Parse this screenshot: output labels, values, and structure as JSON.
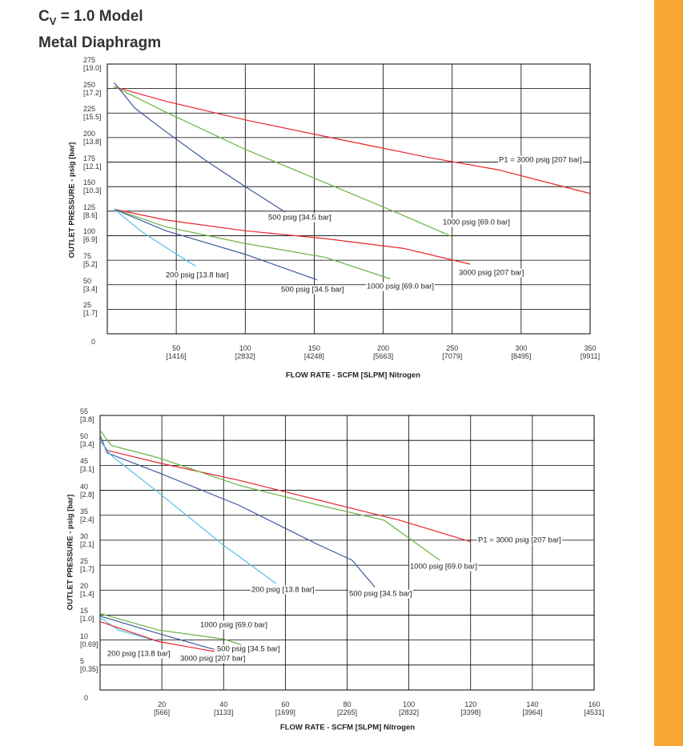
{
  "header": {
    "title": [
      "C",
      "V",
      "= 1.0 Model"
    ],
    "subtitle": "Metal Diaphragm"
  },
  "chart_data": [
    {
      "type": "line",
      "ylabel": "OUTLET PRESSURE - psig [bar]",
      "xlabel": "FLOW RATE - SCFM [SLPM] Nitrogen",
      "grid": true,
      "xlim": [
        0,
        350
      ],
      "ylim": [
        0,
        275
      ],
      "xticks": [
        {
          "value": 50,
          "label": "50\n[1416]"
        },
        {
          "value": 100,
          "label": "100\n[2832]"
        },
        {
          "value": 150,
          "label": "150\n[4248]"
        },
        {
          "value": 200,
          "label": "200\n[5663]"
        },
        {
          "value": 250,
          "label": "250\n[7079]"
        },
        {
          "value": 300,
          "label": "300\n[8495]"
        },
        {
          "value": 350,
          "label": "350\n[9911]"
        }
      ],
      "yticks": [
        0,
        {
          "value": 25,
          "label": "25\n[1.7]"
        },
        {
          "value": 50,
          "label": "50\n[3.4]"
        },
        {
          "value": 75,
          "label": "75\n[5.2]"
        },
        {
          "value": 100,
          "label": "100\n[6.9]"
        },
        {
          "value": 125,
          "label": "125\n[8.6]"
        },
        {
          "value": 150,
          "label": "150\n[10.3]"
        },
        {
          "value": 175,
          "label": "175\n[12.1]"
        },
        {
          "value": 200,
          "label": "200\n[13.8]"
        },
        {
          "value": 225,
          "label": "225\n[15.5]"
        },
        {
          "value": 250,
          "label": "250\n[17.2]"
        },
        {
          "value": 275,
          "label": "275\n[19.0]"
        }
      ],
      "series": [
        {
          "name": "P1 = 3000 psig [207 bar]",
          "color": "#e8262a",
          "x": [
            4.6,
            42.5,
            100,
            169,
            232,
            284,
            350
          ],
          "values": [
            252,
            237,
            218,
            198,
            180,
            167,
            143
          ]
        },
        {
          "name": "1000 psig [69.0 bar]",
          "color": "#6ab344",
          "x": [
            5,
            42.5,
            100,
            158,
            209,
            250
          ],
          "values": [
            252,
            226,
            188,
            154,
            124,
            99
          ]
        },
        {
          "name": "500 psig [34.5 bar]",
          "color": "#3c5a9a",
          "x": [
            5,
            20,
            42.5,
            71,
            100,
            129
          ],
          "values": [
            256,
            230,
            206,
            177,
            150,
            124
          ]
        },
        {
          "name": "3000 psig [207 bar]",
          "color": "#e8262a",
          "x": [
            5,
            42.5,
            100,
            158,
            215,
            263
          ],
          "values": [
            127,
            116,
            105,
            97,
            87,
            71
          ]
        },
        {
          "name": "1000 psig [69.0 bar]",
          "color": "#6ab344",
          "x": [
            5,
            42.5,
            100,
            158,
            205
          ],
          "values": [
            127,
            109,
            92,
            78,
            56
          ]
        },
        {
          "name": "500 psig [34.5 bar]",
          "color": "#3c5a9a",
          "x": [
            5,
            42.5,
            100,
            152
          ],
          "values": [
            127,
            105,
            81,
            55
          ]
        },
        {
          "name": "200 psig [13.8 bar]",
          "color": "#4fc3e8",
          "x": [
            5,
            25,
            48,
            64
          ],
          "values": [
            127,
            104,
            83,
            69
          ]
        }
      ]
    },
    {
      "type": "line",
      "ylabel": "OUTLET PRESSURE - psig [bar]",
      "xlabel": "FLOW RATE - SCFM [SLPM] Nitrogen",
      "grid": true,
      "xlim": [
        0,
        160
      ],
      "ylim": [
        0,
        55
      ],
      "xticks": [
        {
          "value": 20,
          "label": "20\n[566]"
        },
        {
          "value": 40,
          "label": "40\n[1133]"
        },
        {
          "value": 60,
          "label": "60\n[1699]"
        },
        {
          "value": 80,
          "label": "80\n[2265]"
        },
        {
          "value": 100,
          "label": "100\n[2832]"
        },
        {
          "value": 120,
          "label": "120\n[3398]"
        },
        {
          "value": 140,
          "label": "140\n[3964]"
        },
        {
          "value": 160,
          "label": "160\n[4531]"
        }
      ],
      "yticks": [
        0,
        {
          "value": 5,
          "label": "5\n[0.35]"
        },
        {
          "value": 10,
          "label": "10\n[0.69]"
        },
        {
          "value": 15,
          "label": "15\n[1.0]"
        },
        {
          "value": 20,
          "label": "20\n[1.4]"
        },
        {
          "value": 25,
          "label": "25\n[1.7]"
        },
        {
          "value": 30,
          "label": "30\n[2.1]"
        },
        {
          "value": 35,
          "label": "35\n[2.4]"
        },
        {
          "value": 40,
          "label": "40\n[2.8]"
        },
        {
          "value": 45,
          "label": "45\n[3.1]"
        },
        {
          "value": 50,
          "label": "50\n[3.4]"
        },
        {
          "value": 55,
          "label": "55\n[3.8]"
        }
      ],
      "series": [
        {
          "name": "P1 = 3000 psig [207 bar]",
          "color": "#e8262a",
          "x": [
            0,
            2.3,
            19,
            45,
            71,
            97,
            120
          ],
          "values": [
            50,
            48,
            45.5,
            42,
            38,
            34,
            29.7
          ]
        },
        {
          "name": "1000 psig [69.0 bar]",
          "color": "#6ab344",
          "x": [
            0,
            3.6,
            19,
            45,
            71,
            92,
            110
          ],
          "values": [
            52,
            49,
            46.5,
            41,
            37,
            34,
            26
          ]
        },
        {
          "name": "500 psig [34.5 bar]",
          "color": "#3c5a9a",
          "x": [
            0,
            2.3,
            19,
            45,
            71,
            81.6,
            89
          ],
          "values": [
            51,
            47.5,
            43.5,
            37,
            29,
            26,
            20.6
          ]
        },
        {
          "name": "200 psig [13.8 bar]",
          "color": "#4fc3e8",
          "x": [
            0,
            3.6,
            19,
            40,
            57
          ],
          "values": [
            50,
            47,
            39.5,
            29,
            21.3
          ]
        },
        {
          "name": "1000 psig [69.0 bar]",
          "color": "#6ab344",
          "x": [
            0,
            19,
            40,
            46.5
          ],
          "values": [
            15.3,
            12,
            10.2,
            8.9
          ]
        },
        {
          "name": "500 psig [34.5 bar]",
          "color": "#3c5a9a",
          "x": [
            0,
            19,
            37
          ],
          "values": [
            14.8,
            11.3,
            8.1
          ]
        },
        {
          "name": "200 psig [13.8 bar]",
          "color": "#4fc3e8",
          "x": [
            0,
            6,
            19
          ],
          "values": [
            14.5,
            12,
            9.7
          ]
        },
        {
          "name": "3000 psig [207 bar]",
          "color": "#e8262a",
          "x": [
            0,
            19,
            37
          ],
          "values": [
            13.7,
            9.7,
            7.7
          ]
        }
      ]
    }
  ]
}
